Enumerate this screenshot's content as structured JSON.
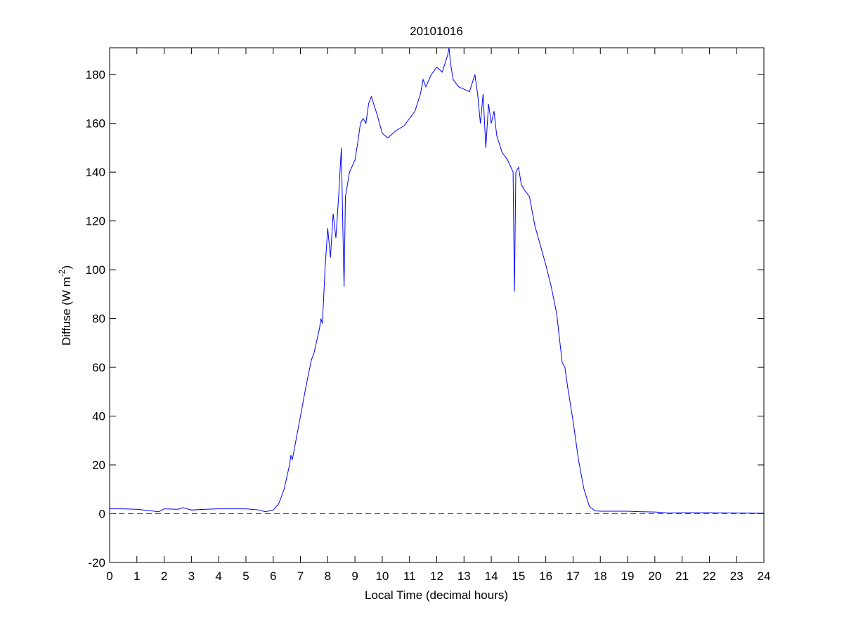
{
  "chart_data": {
    "type": "line",
    "title": "20101016",
    "xlabel": "Local Time (decimal hours)",
    "ylabel": [
      "Diffuse (W m",
      "-2",
      ")"
    ],
    "xlim": [
      0,
      24
    ],
    "ylim": [
      -20,
      191
    ],
    "xticks": [
      0,
      1,
      2,
      3,
      4,
      5,
      6,
      7,
      8,
      9,
      10,
      11,
      12,
      13,
      14,
      15,
      16,
      17,
      18,
      19,
      20,
      21,
      22,
      23,
      24
    ],
    "yticks": [
      -20,
      0,
      20,
      40,
      60,
      80,
      100,
      120,
      140,
      160,
      180
    ],
    "hline": {
      "value": 0,
      "color": "#ff0000",
      "style": "dashed"
    },
    "x": [
      0,
      0.5,
      1,
      1.5,
      1.8,
      2,
      2.5,
      2.7,
      3,
      3.5,
      4,
      4.5,
      5,
      5.5,
      5.7,
      6,
      6.2,
      6.4,
      6.6,
      6.65,
      6.7,
      6.8,
      7,
      7.2,
      7.4,
      7.5,
      7.7,
      7.75,
      7.8,
      7.85,
      7.9,
      8,
      8.1,
      8.2,
      8.3,
      8.4,
      8.5,
      8.55,
      8.6,
      8.65,
      8.8,
      9,
      9.1,
      9.2,
      9.3,
      9.4,
      9.5,
      9.6,
      9.8,
      10,
      10.2,
      10.5,
      10.8,
      11,
      11.2,
      11.4,
      11.5,
      11.6,
      11.8,
      12,
      12.2,
      12.4,
      12.45,
      12.5,
      12.6,
      12.8,
      13,
      13.2,
      13.4,
      13.5,
      13.6,
      13.7,
      13.8,
      13.9,
      14,
      14.1,
      14.2,
      14.4,
      14.6,
      14.8,
      14.82,
      14.85,
      14.9,
      15,
      15.1,
      15.2,
      15.4,
      15.6,
      15.8,
      16,
      16.2,
      16.4,
      16.6,
      16.7,
      16.8,
      17,
      17.2,
      17.4,
      17.6,
      17.8,
      18,
      18.5,
      19,
      19.5,
      20,
      20.5,
      21,
      22,
      23,
      24
    ],
    "series": [
      {
        "color": "#0000ff",
        "values": [
          2,
          2,
          1.8,
          1.2,
          0.8,
          2,
          1.8,
          2.5,
          1.5,
          1.8,
          2,
          2,
          2,
          1.5,
          0.8,
          1.5,
          4,
          10,
          20,
          24,
          22,
          28,
          40,
          52,
          63,
          66,
          76,
          80,
          78,
          88,
          100,
          117,
          105,
          123,
          113,
          130,
          150,
          120,
          93,
          130,
          140,
          145,
          152,
          160,
          162,
          160,
          168,
          171,
          164,
          156,
          154,
          157,
          159,
          162,
          165,
          172,
          178,
          175,
          180,
          183,
          181,
          188,
          191,
          185,
          178,
          175,
          174,
          173,
          180,
          172,
          160,
          172,
          150,
          168,
          160,
          165,
          155,
          148,
          145,
          140,
          120,
          91,
          140,
          142,
          135,
          133,
          130,
          118,
          110,
          102,
          93,
          82,
          62,
          60,
          52,
          38,
          22,
          10,
          3,
          1.2,
          1,
          1,
          1,
          0.8,
          0.7,
          0.3,
          0.4,
          0.4,
          0.3,
          0.2
        ]
      }
    ]
  }
}
